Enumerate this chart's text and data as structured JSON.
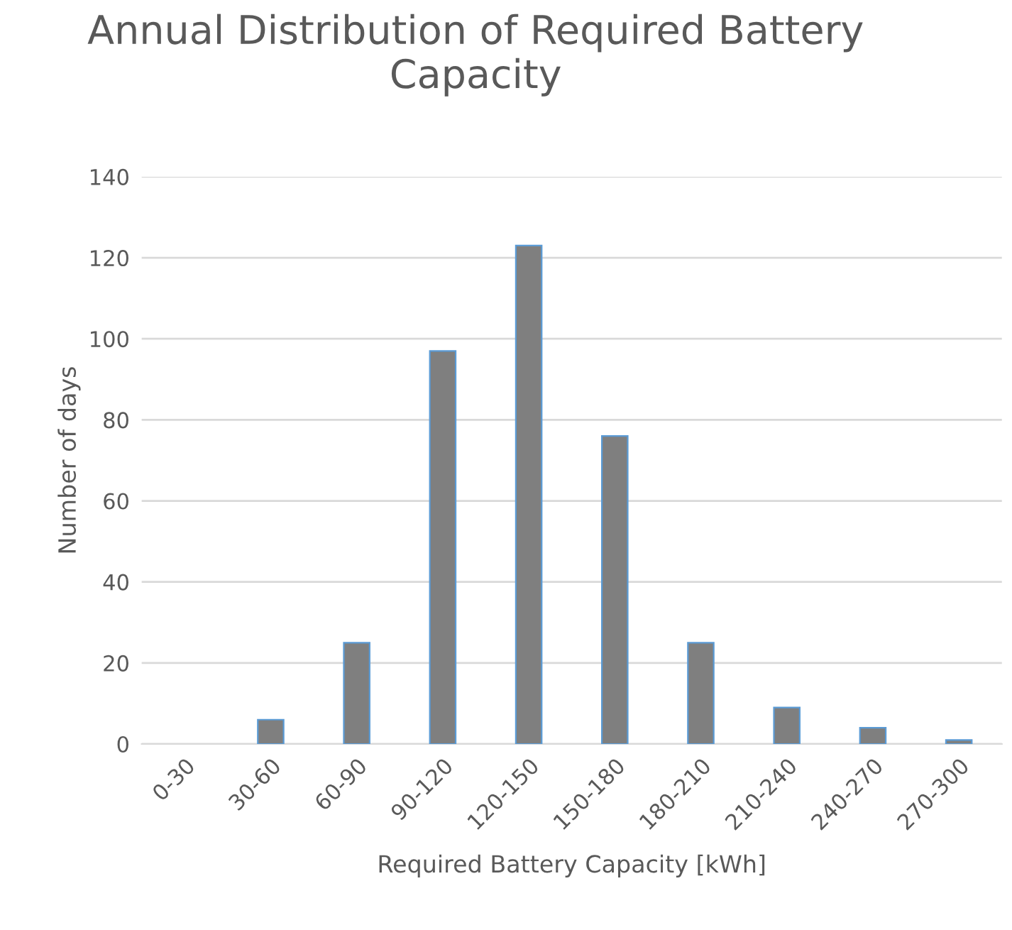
{
  "chart_data": {
    "type": "bar",
    "title": "Annual Distribution of Required Battery Capacity",
    "xlabel": "Required Battery Capacity [kWh]",
    "ylabel": "Number of days",
    "categories": [
      "0-30",
      "30-60",
      "60-90",
      "90-120",
      "120-150",
      "150-180",
      "180-210",
      "210-240",
      "240-270",
      "270-300"
    ],
    "values": [
      0,
      6,
      25,
      97,
      123,
      76,
      25,
      9,
      4,
      1
    ],
    "color": "#7f7f7f",
    "ylim": [
      0,
      140
    ],
    "yticks": [
      0,
      20,
      40,
      60,
      80,
      100,
      120,
      140
    ],
    "grid": "y",
    "legend": false
  }
}
